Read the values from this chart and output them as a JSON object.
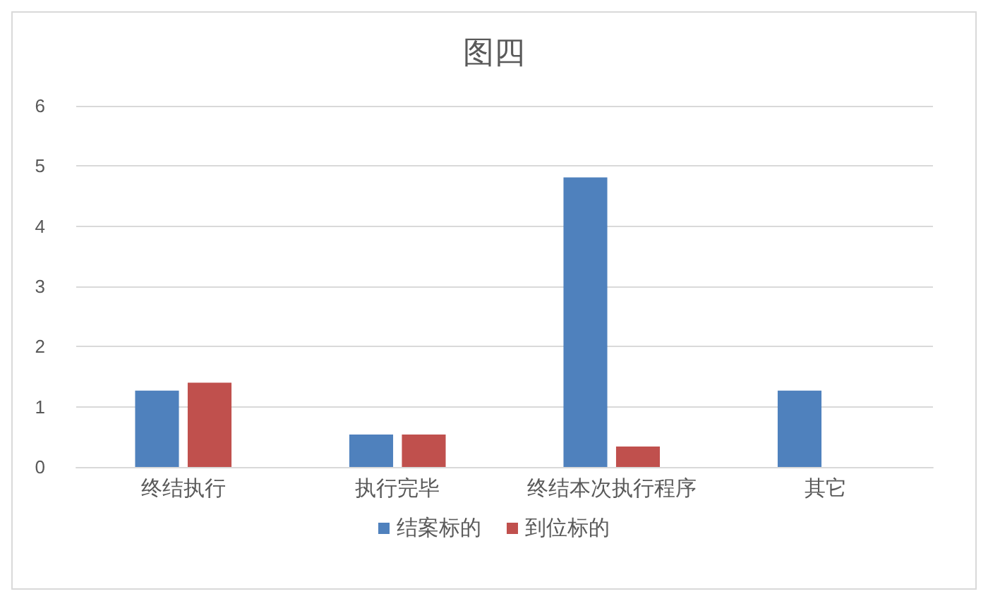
{
  "chart_data": {
    "type": "bar",
    "title": "图四",
    "categories": [
      "终结执行",
      "执行完毕",
      "终结本次执行程序",
      "其它"
    ],
    "series": [
      {
        "name": "结案标的",
        "color": "#4f81bd",
        "values": [
          1.27,
          0.54,
          4.81,
          1.27
        ]
      },
      {
        "name": "到位标的",
        "color": "#c0504d",
        "values": [
          1.4,
          0.54,
          0.34,
          0
        ]
      }
    ],
    "ylim": [
      0,
      6
    ],
    "yticks": [
      0,
      1,
      2,
      3,
      4,
      5,
      6
    ],
    "grid": "y",
    "legend": "bottom"
  }
}
